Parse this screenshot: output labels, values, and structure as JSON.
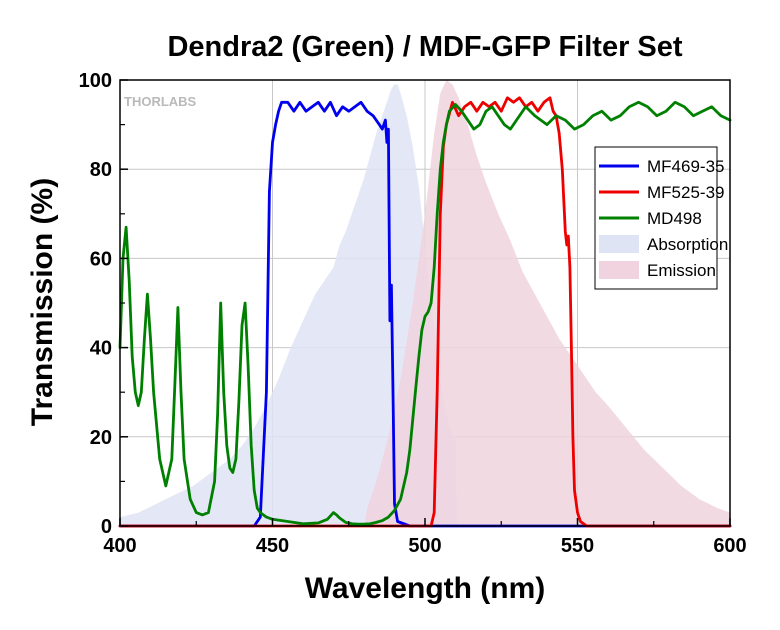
{
  "chart_data": {
    "type": "line",
    "title": "Dendra2 (Green) / MDF-GFP Filter Set",
    "xlabel": "Wavelength (nm)",
    "ylabel": "Transmission (%)",
    "xlim": [
      400,
      600
    ],
    "ylim": [
      0,
      100
    ],
    "xticks": [
      400,
      450,
      500,
      550,
      600
    ],
    "yticks": [
      0,
      20,
      40,
      60,
      80,
      100
    ],
    "grid": true,
    "legend_position": "right",
    "watermark": "THORLABS",
    "series": [
      {
        "name": "MF469-35",
        "kind": "line",
        "color": "#0000ee",
        "x": [
          400,
          444,
          446,
          448,
          449,
          450,
          451,
          452,
          453,
          455,
          457,
          459,
          461,
          463,
          465,
          467,
          469,
          471,
          473,
          475,
          477,
          479,
          481,
          483,
          485,
          486,
          487,
          487.5,
          488,
          488.5,
          489,
          489.5,
          490,
          491,
          495,
          600
        ],
        "y": [
          0,
          0,
          2,
          30,
          75,
          86,
          90,
          93,
          95,
          95,
          93,
          95,
          93,
          94,
          95,
          93,
          95,
          92,
          94,
          93,
          94,
          95,
          93,
          92,
          90,
          89,
          91,
          86,
          89,
          46,
          54,
          30,
          5,
          1,
          0,
          0
        ]
      },
      {
        "name": "MF525-39",
        "kind": "line",
        "color": "#ee0000",
        "x": [
          400,
          502,
          503,
          504,
          505,
          506,
          507,
          509,
          511,
          513,
          515,
          517,
          519,
          521,
          523,
          525,
          527,
          529,
          531,
          533,
          535,
          537,
          539,
          541,
          542,
          543,
          544,
          545,
          546,
          546.5,
          547,
          547.5,
          548,
          548.5,
          549,
          550,
          551,
          553,
          600
        ],
        "y": [
          0,
          0,
          3,
          30,
          70,
          85,
          90,
          95,
          92,
          94,
          95,
          93,
          95,
          94,
          95,
          93,
          96,
          95,
          96,
          94,
          95,
          93,
          95,
          96,
          93,
          92,
          88,
          80,
          66,
          63,
          65,
          58,
          40,
          20,
          8,
          3,
          1,
          0,
          0
        ]
      },
      {
        "name": "MD498",
        "kind": "line",
        "color": "#008000",
        "x": [
          400,
          401,
          402,
          403,
          404,
          405,
          406,
          407,
          408,
          409,
          410,
          411,
          413,
          415,
          417,
          418,
          419,
          420,
          421,
          423,
          425,
          427,
          429,
          431,
          432,
          433,
          434,
          435,
          436,
          437,
          438,
          439,
          440,
          441,
          442,
          443,
          444,
          445,
          446,
          447,
          448,
          450,
          455,
          460,
          465,
          468,
          470,
          471,
          472,
          474,
          476,
          478,
          480,
          482,
          484,
          486,
          488,
          490,
          492,
          494,
          495,
          496,
          497,
          498,
          499,
          500,
          501,
          502,
          503,
          504,
          505,
          506,
          507,
          508,
          510,
          512,
          514,
          516,
          518,
          520,
          522,
          524,
          526,
          528,
          530,
          533,
          536,
          540,
          543,
          546,
          549,
          552,
          555,
          558,
          561,
          564,
          567,
          570,
          573,
          576,
          579,
          582,
          585,
          588,
          591,
          594,
          597,
          600
        ],
        "y": [
          40,
          60,
          67,
          55,
          38,
          30,
          27,
          30,
          42,
          52,
          42,
          30,
          15,
          9,
          15,
          32,
          49,
          30,
          15,
          6,
          3,
          2.5,
          3,
          10,
          25,
          50,
          30,
          18,
          13,
          12,
          15,
          28,
          45,
          50,
          36,
          18,
          8,
          4,
          3,
          2.5,
          2,
          1.5,
          1,
          0.5,
          0.7,
          1.5,
          3,
          2.5,
          1.8,
          0.8,
          0.5,
          0.4,
          0.4,
          0.5,
          0.8,
          1.2,
          2,
          3.5,
          6,
          12,
          17,
          24,
          31,
          38,
          44,
          47,
          48,
          50,
          58,
          70,
          80,
          86,
          90,
          93,
          94.5,
          93,
          91,
          89,
          90,
          93,
          94,
          92,
          90,
          89,
          91,
          94,
          92,
          90,
          92,
          91,
          89,
          90,
          92,
          93,
          91,
          92,
          94,
          95,
          94,
          92,
          93,
          95,
          94,
          92,
          93,
          94,
          92,
          91
        ]
      },
      {
        "name": "Absorption",
        "kind": "area",
        "color": "#dfe4f4",
        "x": [
          400,
          406,
          412,
          418,
          424,
          430,
          436,
          440,
          444,
          448,
          452,
          456,
          460,
          464,
          468,
          470,
          472,
          474,
          476,
          478,
          480,
          482,
          484,
          486,
          488,
          489,
          490,
          491,
          492,
          494,
          496,
          498,
          500,
          502,
          504,
          506,
          508,
          510,
          510.5,
          600
        ],
        "y": [
          2,
          3,
          5,
          7,
          9,
          12,
          15,
          18,
          22,
          27,
          33,
          40,
          46,
          52,
          56,
          58,
          63,
          66,
          70,
          74,
          78,
          83,
          88,
          92,
          96,
          98,
          99,
          99,
          97,
          92,
          85,
          76,
          63,
          50,
          38,
          28,
          22,
          19,
          0,
          0
        ]
      },
      {
        "name": "Emission",
        "kind": "area",
        "color": "#f0d3de",
        "x": [
          400,
          480,
          481,
          484,
          488,
          492,
          496,
          500,
          503,
          505,
          507,
          509,
          511,
          514,
          517,
          520,
          524,
          528,
          532,
          536,
          540,
          544,
          548,
          552,
          556,
          560,
          566,
          572,
          578,
          584,
          590,
          596,
          600
        ],
        "y": [
          0,
          0,
          4,
          10,
          20,
          33,
          50,
          70,
          88,
          97,
          100,
          99,
          96,
          90,
          83,
          77,
          70,
          64,
          57,
          52,
          47,
          42,
          38,
          34,
          30,
          27,
          22,
          17,
          13,
          9,
          6,
          4,
          3
        ]
      }
    ]
  }
}
